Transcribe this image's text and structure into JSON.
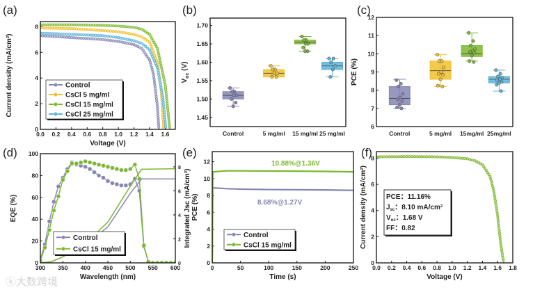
{
  "colors": {
    "control": "#8586b4",
    "cs5": "#f2c12e",
    "cs15": "#7cb82f",
    "cs25": "#5cb3d9",
    "axis": "#111111"
  },
  "watermark": "大数跨境",
  "chart_data": [
    {
      "id": "a",
      "panel_label": "(a)",
      "type": "line",
      "xlabel": "Voltage (V)",
      "ylabel": "Current density (mA/cm²)",
      "xticks": [
        "0.0",
        "0.2",
        "0.4",
        "0.6",
        "0.8",
        "1.0",
        "1.2",
        "1.4",
        "1.6"
      ],
      "xtick_values": [
        0,
        0.2,
        0.4,
        0.6,
        0.8,
        1.0,
        1.2,
        1.4,
        1.6
      ],
      "yticks": [
        "0",
        "2",
        "4",
        "6",
        "8"
      ],
      "ytick_values": [
        0,
        2,
        4,
        6,
        8
      ],
      "xlim": [
        0,
        1.73
      ],
      "ylim": [
        0,
        8.4
      ],
      "legend": "bottom-left",
      "series": [
        {
          "name": "Control",
          "color": "control",
          "x": [
            0,
            0.4,
            0.8,
            1.0,
            1.2,
            1.3,
            1.4,
            1.45,
            1.5,
            1.52
          ],
          "y": [
            7.3,
            7.15,
            7.0,
            6.85,
            6.6,
            6.3,
            5.4,
            4.3,
            1.8,
            0
          ]
        },
        {
          "name": "CsCl 5 mg/ml",
          "color": "cs5",
          "x": [
            0,
            0.4,
            0.8,
            1.0,
            1.2,
            1.3,
            1.4,
            1.5,
            1.55,
            1.58
          ],
          "y": [
            7.9,
            7.85,
            7.7,
            7.6,
            7.4,
            7.2,
            6.8,
            5.2,
            3.0,
            0
          ]
        },
        {
          "name": "CsCl 15 mg/ml",
          "color": "cs15",
          "x": [
            0,
            0.4,
            0.8,
            1.0,
            1.2,
            1.3,
            1.4,
            1.5,
            1.6,
            1.66
          ],
          "y": [
            8.15,
            8.15,
            8.1,
            8.05,
            7.95,
            7.8,
            7.4,
            6.3,
            3.5,
            0
          ]
        },
        {
          "name": "CsCl 25 mg/ml",
          "color": "cs25",
          "x": [
            0,
            0.4,
            0.8,
            1.0,
            1.2,
            1.3,
            1.4,
            1.5,
            1.57,
            1.61
          ],
          "y": [
            7.5,
            7.4,
            7.3,
            7.15,
            6.9,
            6.7,
            6.2,
            4.8,
            2.5,
            0
          ]
        }
      ]
    },
    {
      "id": "b",
      "panel_label": "(b)",
      "type": "box",
      "ylabel": "Voc (V)",
      "ylabel_main": "V",
      "ylabel_sub": "oc",
      "ylabel_rest": " (V)",
      "categories": [
        "Control",
        "5 mg/ml",
        "15 mg/ml",
        "25 mg/ml"
      ],
      "yticks": [
        "1.45",
        "1.50",
        "1.55",
        "1.60",
        "1.65",
        "1.70"
      ],
      "ytick_values": [
        1.45,
        1.5,
        1.55,
        1.6,
        1.65,
        1.7
      ],
      "ylim": [
        1.425,
        1.72
      ],
      "series": [
        {
          "name": "Control",
          "color": "control",
          "q1": 1.5,
          "median": 1.51,
          "q3": 1.52,
          "min": 1.48,
          "max": 1.53,
          "points": [
            1.53,
            1.52,
            1.52,
            1.51,
            1.51,
            1.5,
            1.49,
            1.48
          ]
        },
        {
          "name": "5 mg/ml",
          "color": "cs5",
          "q1": 1.56,
          "median": 1.57,
          "q3": 1.58,
          "min": 1.56,
          "max": 1.59,
          "points": [
            1.59,
            1.58,
            1.58,
            1.57,
            1.57,
            1.56,
            1.56
          ]
        },
        {
          "name": "15 mg/ml",
          "color": "cs15",
          "q1": 1.65,
          "median": 1.655,
          "q3": 1.66,
          "min": 1.63,
          "max": 1.67,
          "points": [
            1.67,
            1.66,
            1.66,
            1.65,
            1.65,
            1.64,
            1.63,
            1.63
          ]
        },
        {
          "name": "25 mg/ml",
          "color": "cs25",
          "q1": 1.58,
          "median": 1.59,
          "q3": 1.6,
          "min": 1.56,
          "max": 1.61,
          "points": [
            1.61,
            1.61,
            1.6,
            1.59,
            1.58,
            1.56
          ]
        }
      ]
    },
    {
      "id": "c",
      "panel_label": "(c)",
      "type": "box",
      "ylabel": "PCE (%)",
      "categories": [
        "Control",
        "5 mg/ml",
        "15mg/ml",
        "25mg/ml"
      ],
      "yticks": [
        "6",
        "7",
        "8",
        "9",
        "10",
        "11",
        "12"
      ],
      "ytick_values": [
        6,
        7,
        8,
        9,
        10,
        11,
        12
      ],
      "ylim": [
        6,
        12
      ],
      "series": [
        {
          "name": "Control",
          "color": "control",
          "q1": 7.2,
          "median": 7.55,
          "q3": 8.2,
          "min": 7.0,
          "max": 8.6,
          "points": [
            8.55,
            8.35,
            8.2,
            7.8,
            7.6,
            7.5,
            7.4,
            7.2,
            7.05,
            7.0
          ]
        },
        {
          "name": "5 mg/ml",
          "color": "cs5",
          "q1": 8.6,
          "median": 9.07,
          "q3": 9.6,
          "min": 8.2,
          "max": 9.95,
          "points": [
            9.95,
            9.6,
            9.6,
            9.25,
            9.0,
            8.9,
            8.85,
            8.6,
            8.25,
            8.2
          ]
        },
        {
          "name": "15mg/ml",
          "color": "cs15",
          "q1": 9.85,
          "median": 10.0,
          "q3": 10.45,
          "min": 9.6,
          "max": 11.15,
          "points": [
            11.15,
            10.7,
            10.45,
            10.25,
            10.15,
            10.1,
            10.05,
            9.9,
            9.6,
            9.55
          ]
        },
        {
          "name": "25mg/ml",
          "color": "cs25",
          "q1": 8.4,
          "median": 8.6,
          "q3": 8.75,
          "min": 7.95,
          "max": 9.1,
          "points": [
            9.1,
            8.9,
            8.75,
            8.7,
            8.6,
            8.55,
            8.45,
            8.4,
            8.3,
            7.95
          ]
        }
      ]
    },
    {
      "id": "d",
      "panel_label": "(d)",
      "type": "line",
      "xlabel": "Wavelength (nm)",
      "ylabel": "EQE (%)",
      "y2label": "Integrated Jsc (mA/cm²)",
      "xticks": [
        "300",
        "350",
        "400",
        "450",
        "500",
        "550",
        "600"
      ],
      "xtick_values": [
        300,
        350,
        400,
        450,
        500,
        550,
        600
      ],
      "yticks": [
        "0",
        "20",
        "40",
        "60",
        "80",
        "100"
      ],
      "ytick_values": [
        0,
        20,
        40,
        60,
        80,
        100
      ],
      "y2ticks": [
        "0",
        "2",
        "4",
        "6",
        "8"
      ],
      "y2tick_values": [
        0,
        2,
        4,
        6,
        8
      ],
      "xlim": [
        300,
        600
      ],
      "ylim": [
        0,
        100
      ],
      "y2lim": [
        0,
        9.1
      ],
      "legend": "bottom-left",
      "series": [
        {
          "name": "Control",
          "color": "control",
          "axis": "left",
          "markers": true,
          "x": [
            300,
            310,
            320,
            330,
            340,
            350,
            360,
            370,
            380,
            390,
            400,
            410,
            420,
            430,
            440,
            450,
            460,
            470,
            480,
            490,
            500,
            510,
            520,
            530,
            540,
            550,
            560,
            570,
            580,
            590,
            600
          ],
          "y": [
            3,
            17,
            38,
            56,
            70,
            78,
            86,
            92,
            90,
            89,
            88,
            86,
            83,
            80,
            78,
            75,
            73,
            72,
            71,
            71,
            72,
            77,
            66,
            15,
            1,
            0,
            0,
            0,
            0,
            0,
            0
          ]
        },
        {
          "name": "CsCl 15 mg/ml",
          "color": "cs15",
          "axis": "left",
          "markers": true,
          "x": [
            300,
            310,
            320,
            330,
            340,
            350,
            360,
            370,
            380,
            390,
            400,
            410,
            420,
            430,
            440,
            450,
            460,
            470,
            480,
            490,
            500,
            510,
            520,
            530,
            540,
            550,
            560,
            570,
            580,
            590,
            600
          ],
          "y": [
            2,
            14,
            30,
            48,
            61,
            76,
            84,
            91,
            91,
            92,
            93,
            92,
            91,
            90,
            89,
            88,
            87,
            86,
            85,
            85,
            86,
            90,
            77,
            16,
            1,
            0,
            0,
            0,
            0,
            0,
            0
          ]
        },
        {
          "name": "Control Integrated Jsc",
          "color": "control",
          "axis": "right",
          "markers": false,
          "x": [
            300,
            325,
            350,
            400,
            450,
            500,
            525,
            600
          ],
          "y": [
            0,
            0.1,
            0.5,
            1.5,
            3.0,
            5.8,
            7.0,
            7.0
          ]
        },
        {
          "name": "CsCl 15 mg/ml Integrated Jsc",
          "color": "cs15",
          "axis": "right",
          "markers": false,
          "x": [
            300,
            325,
            350,
            400,
            450,
            500,
            525,
            600
          ],
          "y": [
            0,
            0.1,
            0.5,
            1.6,
            3.4,
            6.4,
            7.8,
            7.85
          ]
        }
      ],
      "legend_entries": [
        "Control",
        "CsCl 15 mg/ml"
      ]
    },
    {
      "id": "e",
      "panel_label": "(e)",
      "type": "line",
      "xlabel": "Time (s)",
      "ylabel": "PCE (%)",
      "xticks": [
        "0",
        "50",
        "100",
        "150",
        "200",
        "250"
      ],
      "xtick_values": [
        0,
        50,
        100,
        150,
        200,
        250
      ],
      "yticks": [
        "0",
        "2",
        "4",
        "6",
        "8",
        "10",
        "12"
      ],
      "ytick_values": [
        0,
        2,
        4,
        6,
        8,
        10,
        12
      ],
      "xlim": [
        0,
        250
      ],
      "ylim": [
        0,
        13.2
      ],
      "legend": "bottom-left",
      "series": [
        {
          "name": "Control",
          "color": "control",
          "x": [
            0,
            1,
            2,
            25,
            50,
            100,
            150,
            200,
            250
          ],
          "y": [
            0,
            9.1,
            8.9,
            8.8,
            8.75,
            8.7,
            8.68,
            8.65,
            8.6
          ]
        },
        {
          "name": "CsCl 15 mg/ml",
          "color": "cs15",
          "x": [
            0,
            1,
            2,
            25,
            50,
            100,
            150,
            200,
            250
          ],
          "y": [
            0,
            10.6,
            10.8,
            10.92,
            10.92,
            10.9,
            10.88,
            10.85,
            10.8
          ]
        }
      ],
      "annotations": [
        {
          "text": "10.88%@1.36V",
          "color": "cs15"
        },
        {
          "text": "8.68%@1.27V",
          "color": "control"
        }
      ]
    },
    {
      "id": "f",
      "panel_label": "(f)",
      "type": "line",
      "xlabel": "Voltage (V)",
      "ylabel": "Current density (mA/cm²)",
      "xticks": [
        "0.0",
        "0.2",
        "0.4",
        "0.6",
        "0.8",
        "1.0",
        "1.2",
        "1.4",
        "1.6",
        "1.8"
      ],
      "xtick_values": [
        0,
        0.2,
        0.4,
        0.6,
        0.8,
        1.0,
        1.2,
        1.4,
        1.6,
        1.8
      ],
      "yticks": [
        "0",
        "2",
        "4",
        "6",
        "8"
      ],
      "ytick_values": [
        0,
        2,
        4,
        6,
        8
      ],
      "xlim": [
        0,
        1.8
      ],
      "ylim": [
        0,
        8.5
      ],
      "series": [
        {
          "name": "CsCl 15 mg/ml",
          "color": "cs15",
          "x": [
            0,
            0.4,
            0.8,
            1.0,
            1.2,
            1.3,
            1.4,
            1.5,
            1.55,
            1.6,
            1.64,
            1.68
          ],
          "y": [
            8.1,
            8.12,
            8.1,
            8.05,
            7.95,
            7.8,
            7.5,
            6.6,
            5.5,
            3.6,
            1.5,
            0
          ]
        }
      ],
      "metrics": [
        {
          "label": "PCE",
          "sub": "",
          "value": "11.16%"
        },
        {
          "label": "J",
          "sub": "sc",
          "value": "8.10 mA/cm²"
        },
        {
          "label": "V",
          "sub": "oc",
          "value": "1.68 V"
        },
        {
          "label": "FF",
          "sub": "",
          "value": "0.82"
        }
      ]
    }
  ]
}
